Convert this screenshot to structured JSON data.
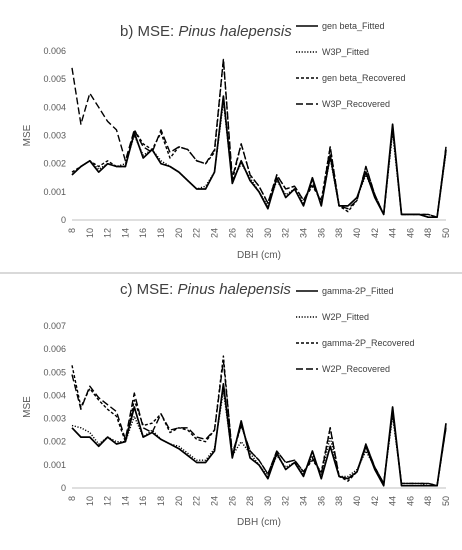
{
  "chart_data": [
    {
      "type": "line",
      "title_prefix": "b) MSE: ",
      "title_species": "Pinus halepensis",
      "xlabel": "DBH (cm)",
      "ylabel": "MSE",
      "x": [
        8,
        9,
        10,
        11,
        12,
        13,
        14,
        15,
        16,
        17,
        18,
        19,
        20,
        21,
        22,
        23,
        24,
        25,
        26,
        27,
        28,
        29,
        30,
        31,
        32,
        33,
        34,
        35,
        36,
        37,
        38,
        39,
        40,
        41,
        42,
        43,
        44,
        45,
        46,
        47,
        48,
        49,
        50
      ],
      "xticks": [
        "8",
        "10",
        "12",
        "14",
        "16",
        "18",
        "20",
        "22",
        "24",
        "26",
        "28",
        "30",
        "32",
        "34",
        "36",
        "38",
        "40",
        "42",
        "44",
        "46",
        "48",
        "50"
      ],
      "ylim": [
        0,
        0.006
      ],
      "yticks": [
        "0",
        "0.001",
        "0.002",
        "0.003",
        "0.004",
        "0.005",
        "0.006"
      ],
      "series": [
        {
          "name": "gen beta_Fitted",
          "style": "solid",
          "values": [
            0.0016,
            0.0019,
            0.0021,
            0.0017,
            0.002,
            0.0019,
            0.0019,
            0.0031,
            0.0022,
            0.0025,
            0.002,
            0.0019,
            0.0017,
            0.0014,
            0.0011,
            0.0011,
            0.0017,
            0.0044,
            0.0013,
            0.0021,
            0.0014,
            0.001,
            0.0004,
            0.0015,
            0.0008,
            0.0011,
            0.0005,
            0.0015,
            0.0005,
            0.0023,
            0.0005,
            0.0005,
            0.0008,
            0.0017,
            0.0008,
            0.0002,
            0.0034,
            0.0002,
            0.0002,
            0.0002,
            0.0001,
            0.0001,
            0.0025
          ]
        },
        {
          "name": "W3P_Fitted",
          "style": "dotted",
          "values": [
            0.0016,
            0.0019,
            0.0021,
            0.0018,
            0.002,
            0.0019,
            0.002,
            0.003,
            0.0023,
            0.0025,
            0.0021,
            0.0019,
            0.0017,
            0.0014,
            0.0011,
            0.0012,
            0.0017,
            0.0042,
            0.0014,
            0.002,
            0.0015,
            0.001,
            0.0005,
            0.0014,
            0.0009,
            0.0011,
            0.0006,
            0.0014,
            0.0006,
            0.0022,
            0.0005,
            0.0005,
            0.0008,
            0.0016,
            0.0009,
            0.0002,
            0.0031,
            0.0002,
            0.0002,
            0.0002,
            0.0001,
            0.0001,
            0.0024
          ]
        },
        {
          "name": "gen beta_Recovered",
          "style": "shortdash",
          "values": [
            0.0017,
            0.0019,
            0.0021,
            0.0019,
            0.0021,
            0.0019,
            0.0019,
            0.0032,
            0.0027,
            0.0025,
            0.0031,
            0.0022,
            0.0026,
            0.0025,
            0.0021,
            0.002,
            0.0024,
            0.0057,
            0.0014,
            0.0027,
            0.0016,
            0.0012,
            0.0006,
            0.0016,
            0.0011,
            0.0012,
            0.0007,
            0.0012,
            0.0007,
            0.0026,
            0.0005,
            0.0003,
            0.0007,
            0.0019,
            0.0009,
            0.0002,
            0.0033,
            0.0002,
            0.0002,
            0.0002,
            0.0002,
            0.0001,
            0.0026
          ]
        },
        {
          "name": "W3P_Recovered",
          "style": "longdash",
          "values": [
            0.0054,
            0.0034,
            0.0045,
            0.004,
            0.0035,
            0.0032,
            0.0021,
            0.0032,
            0.0026,
            0.0024,
            0.0032,
            0.0024,
            0.0026,
            0.0025,
            0.0021,
            0.002,
            0.0025,
            0.0057,
            0.0015,
            0.0027,
            0.0016,
            0.0012,
            0.0006,
            0.0016,
            0.0011,
            0.0012,
            0.0007,
            0.0013,
            0.0006,
            0.0026,
            0.0005,
            0.0004,
            0.0007,
            0.0019,
            0.0009,
            0.0002,
            0.0033,
            0.0002,
            0.0002,
            0.0002,
            0.0002,
            0.0001,
            0.0026
          ]
        }
      ]
    },
    {
      "type": "line",
      "title_prefix": "c) MSE: ",
      "title_species": "Pinus halepensis",
      "xlabel": "DBH (cm)",
      "ylabel": "MSE",
      "x": [
        8,
        9,
        10,
        11,
        12,
        13,
        14,
        15,
        16,
        17,
        18,
        19,
        20,
        21,
        22,
        23,
        24,
        25,
        26,
        27,
        28,
        29,
        30,
        31,
        32,
        33,
        34,
        35,
        36,
        37,
        38,
        39,
        40,
        41,
        42,
        43,
        44,
        45,
        46,
        47,
        48,
        49,
        50
      ],
      "xticks": [
        "8",
        "10",
        "12",
        "14",
        "16",
        "18",
        "20",
        "22",
        "24",
        "26",
        "28",
        "30",
        "32",
        "34",
        "36",
        "38",
        "40",
        "42",
        "44",
        "46",
        "48",
        "50"
      ],
      "ylim": [
        0,
        0.007
      ],
      "yticks": [
        "0",
        "0.001",
        "0.002",
        "0.003",
        "0.004",
        "0.005",
        "0.006",
        "0.007"
      ],
      "series": [
        {
          "name": "gamma-2P_Fitted",
          "style": "solid",
          "values": [
            0.0026,
            0.0022,
            0.0022,
            0.0018,
            0.0022,
            0.0019,
            0.002,
            0.0035,
            0.0022,
            0.0024,
            0.0021,
            0.0019,
            0.0017,
            0.0014,
            0.0011,
            0.0011,
            0.0016,
            0.0045,
            0.0013,
            0.0029,
            0.0013,
            0.001,
            0.0004,
            0.0015,
            0.0008,
            0.0011,
            0.0005,
            0.0016,
            0.0004,
            0.0018,
            0.0005,
            0.0004,
            0.0007,
            0.0018,
            0.0008,
            0.0001,
            0.0035,
            0.0001,
            0.0001,
            0.0001,
            0.0001,
            0.0001,
            0.0028
          ]
        },
        {
          "name": "W2P_Fitted",
          "style": "dotted",
          "values": [
            0.0027,
            0.0026,
            0.0024,
            0.0019,
            0.0022,
            0.002,
            0.002,
            0.0031,
            0.0022,
            0.0025,
            0.0021,
            0.0019,
            0.0018,
            0.0015,
            0.0012,
            0.0012,
            0.0017,
            0.0042,
            0.0014,
            0.002,
            0.0015,
            0.001,
            0.0005,
            0.0014,
            0.0009,
            0.0011,
            0.0006,
            0.0014,
            0.0006,
            0.0022,
            0.0005,
            0.0005,
            0.0008,
            0.0016,
            0.0009,
            0.0002,
            0.0031,
            0.0002,
            0.0002,
            0.0002,
            0.0001,
            0.0001,
            0.0027
          ]
        },
        {
          "name": "gamma-2P_Recovered",
          "style": "shortdash",
          "values": [
            0.0053,
            0.0035,
            0.0043,
            0.0038,
            0.0034,
            0.0031,
            0.002,
            0.0038,
            0.0027,
            0.0028,
            0.0032,
            0.0024,
            0.0026,
            0.0025,
            0.0021,
            0.002,
            0.0025,
            0.0057,
            0.0014,
            0.0027,
            0.0016,
            0.0012,
            0.0006,
            0.0016,
            0.0011,
            0.0012,
            0.0007,
            0.0012,
            0.0007,
            0.0026,
            0.0005,
            0.0003,
            0.0007,
            0.0019,
            0.0009,
            0.0002,
            0.0033,
            0.0002,
            0.0002,
            0.0002,
            0.0002,
            0.0001,
            0.0026
          ]
        },
        {
          "name": "W2P_Recovered",
          "style": "longdash",
          "values": [
            0.0049,
            0.0034,
            0.0044,
            0.0039,
            0.0036,
            0.0033,
            0.0021,
            0.0041,
            0.0026,
            0.0024,
            0.0032,
            0.0025,
            0.0026,
            0.0026,
            0.0022,
            0.0021,
            0.0025,
            0.0055,
            0.0015,
            0.0027,
            0.0016,
            0.0012,
            0.0006,
            0.0016,
            0.0011,
            0.0012,
            0.0007,
            0.0013,
            0.0006,
            0.0026,
            0.0005,
            0.0004,
            0.0007,
            0.0019,
            0.0009,
            0.0002,
            0.0033,
            0.0002,
            0.0002,
            0.0002,
            0.0002,
            0.0001,
            0.0026
          ]
        }
      ]
    }
  ]
}
